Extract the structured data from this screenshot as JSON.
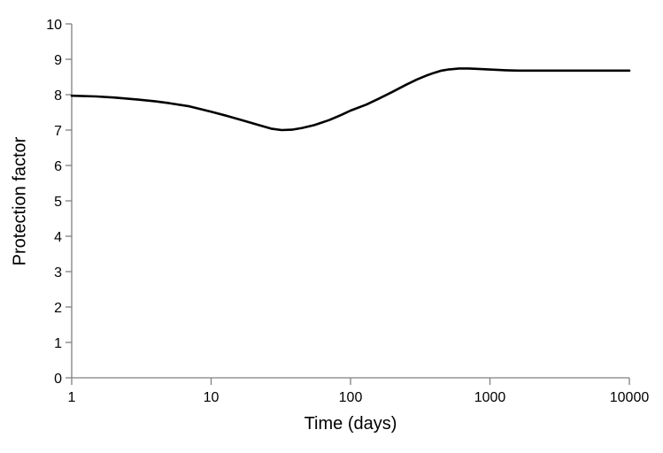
{
  "chart_data": {
    "type": "line",
    "title": "",
    "xlabel": "Time (days)",
    "ylabel": "Protection factor",
    "x_scale": "log",
    "xlim": [
      1,
      10000
    ],
    "ylim": [
      0,
      10
    ],
    "x_ticks": [
      1,
      10,
      100,
      1000,
      10000
    ],
    "y_ticks": [
      0,
      1,
      2,
      3,
      4,
      5,
      6,
      7,
      8,
      9,
      10
    ],
    "grid": false,
    "legend": null,
    "colors": {
      "line": "#000000",
      "axis": "#808080",
      "text": "#000000",
      "background": "#ffffff"
    },
    "series": [
      {
        "name": "Protection factor",
        "points": [
          [
            1,
            7.97
          ],
          [
            1.5,
            7.95
          ],
          [
            2,
            7.92
          ],
          [
            3,
            7.86
          ],
          [
            4,
            7.81
          ],
          [
            5,
            7.76
          ],
          [
            7,
            7.67
          ],
          [
            10,
            7.52
          ],
          [
            13,
            7.4
          ],
          [
            17,
            7.27
          ],
          [
            22,
            7.14
          ],
          [
            27,
            7.04
          ],
          [
            32,
            7.0
          ],
          [
            38,
            7.01
          ],
          [
            45,
            7.06
          ],
          [
            55,
            7.14
          ],
          [
            70,
            7.28
          ],
          [
            85,
            7.42
          ],
          [
            100,
            7.55
          ],
          [
            130,
            7.72
          ],
          [
            160,
            7.89
          ],
          [
            200,
            8.08
          ],
          [
            250,
            8.28
          ],
          [
            300,
            8.43
          ],
          [
            350,
            8.54
          ],
          [
            400,
            8.62
          ],
          [
            450,
            8.68
          ],
          [
            500,
            8.71
          ],
          [
            600,
            8.74
          ],
          [
            700,
            8.74
          ],
          [
            800,
            8.73
          ],
          [
            1000,
            8.71
          ],
          [
            1300,
            8.69
          ],
          [
            1600,
            8.68
          ],
          [
            2000,
            8.68
          ],
          [
            3000,
            8.68
          ],
          [
            5000,
            8.68
          ],
          [
            7000,
            8.68
          ],
          [
            10000,
            8.68
          ]
        ]
      }
    ]
  }
}
